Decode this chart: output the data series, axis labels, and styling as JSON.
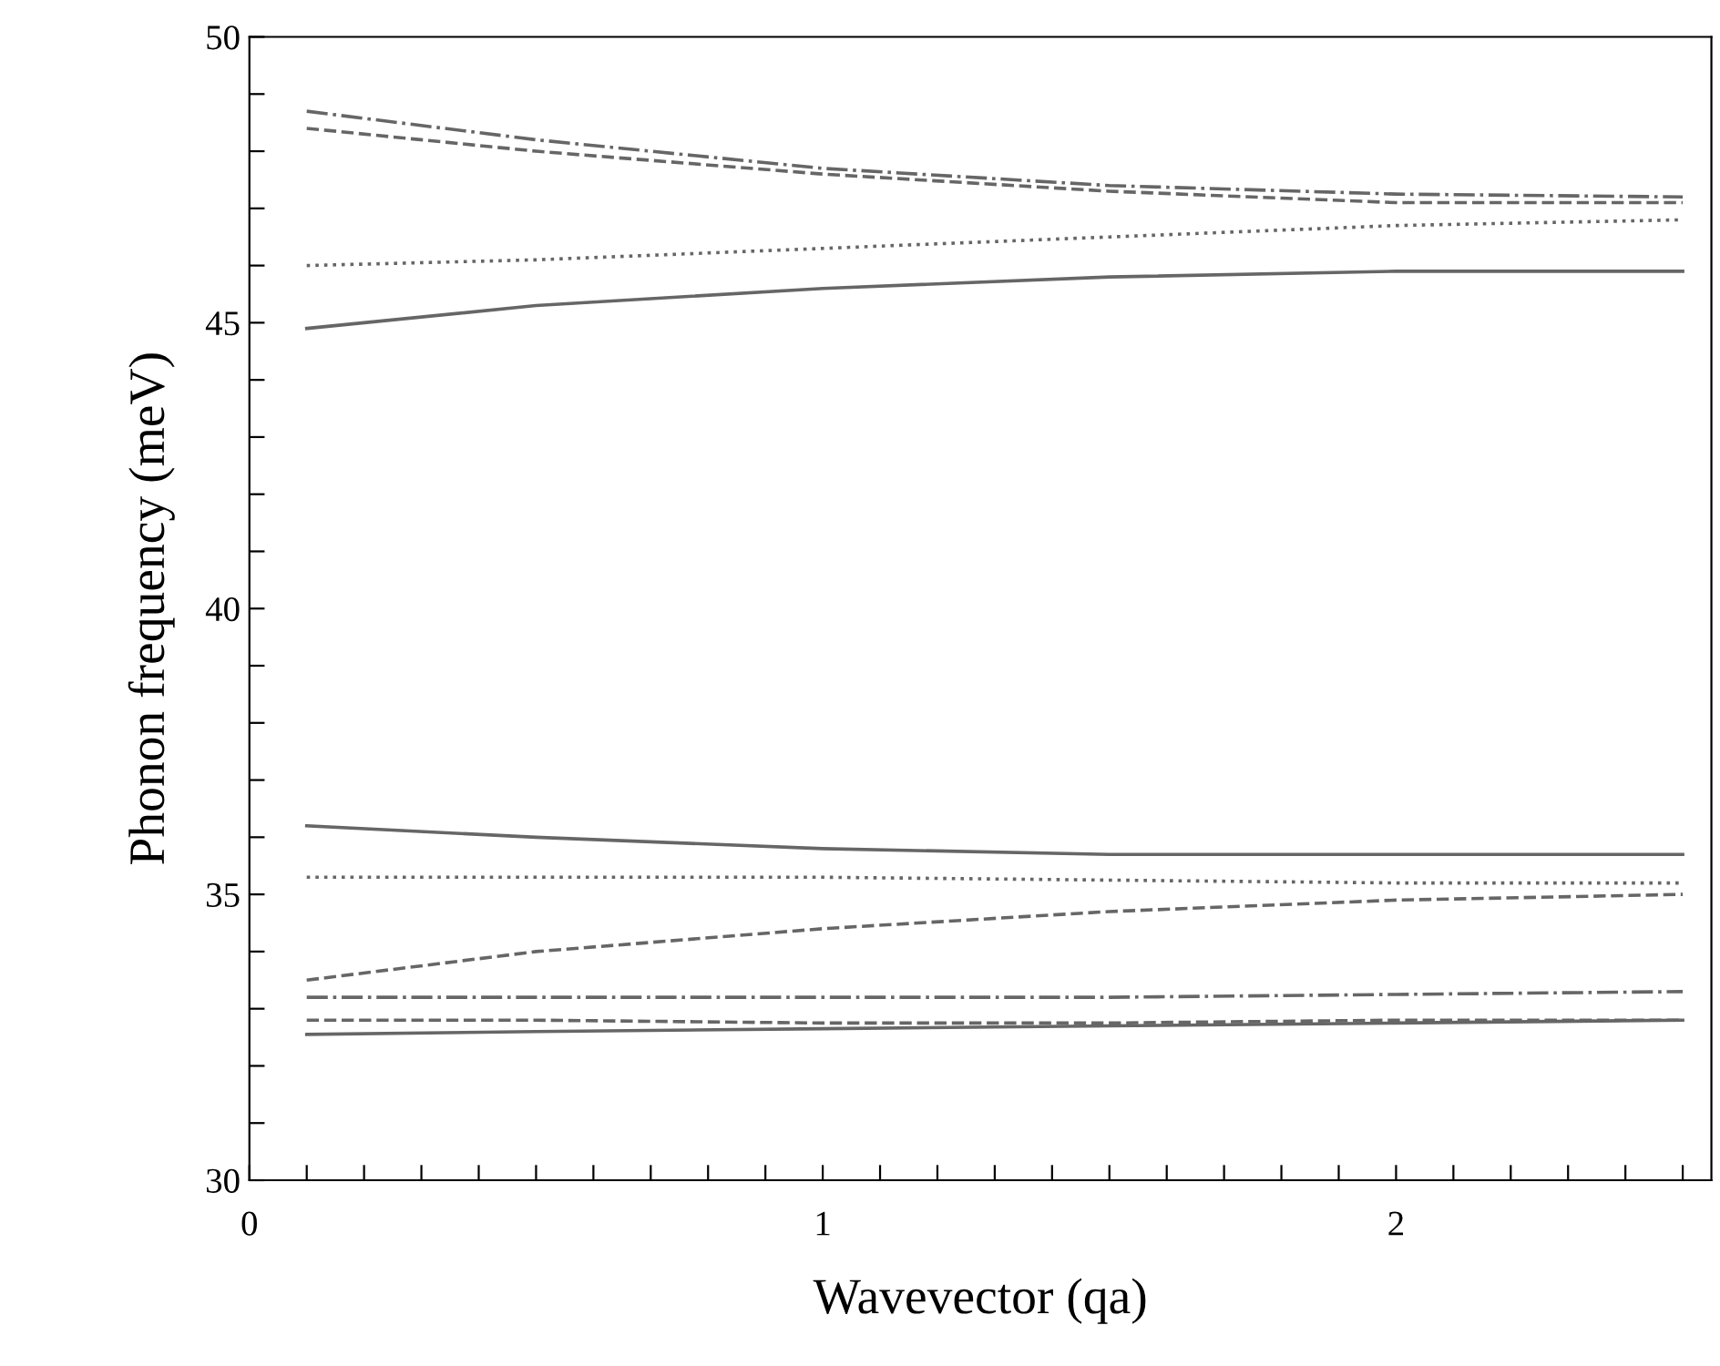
{
  "chart_data": {
    "type": "line",
    "xlabel": "Wavevector (qa)",
    "ylabel": "Phonon frequency (meV)",
    "xlim": [
      0,
      2.55
    ],
    "ylim": [
      30,
      50
    ],
    "xticks": [
      0,
      {
        "value": 0.1,
        "label": null
      },
      {
        "value": 0.2,
        "label": null
      },
      {
        "value": 0.3,
        "label": null
      },
      {
        "value": 0.4,
        "label": null
      },
      {
        "value": 0.5,
        "label": null
      },
      {
        "value": 0.6,
        "label": null
      },
      {
        "value": 0.7,
        "label": null
      },
      {
        "value": 0.8,
        "label": null
      },
      {
        "value": 0.9,
        "label": null
      },
      1,
      {
        "value": 1.1,
        "label": null
      },
      {
        "value": 1.2,
        "label": null
      },
      {
        "value": 1.3,
        "label": null
      },
      {
        "value": 1.4,
        "label": null
      },
      {
        "value": 1.5,
        "label": null
      },
      {
        "value": 1.6,
        "label": null
      },
      {
        "value": 1.7,
        "label": null
      },
      {
        "value": 1.8,
        "label": null
      },
      {
        "value": 1.9,
        "label": null
      },
      2,
      {
        "value": 2.1,
        "label": null
      },
      {
        "value": 2.2,
        "label": null
      },
      {
        "value": 2.3,
        "label": null
      },
      {
        "value": 2.4,
        "label": null
      },
      {
        "value": 2.5,
        "label": null
      }
    ],
    "yticks": [
      30,
      {
        "value": 31,
        "label": null
      },
      {
        "value": 32,
        "label": null
      },
      {
        "value": 33,
        "label": null
      },
      {
        "value": 34,
        "label": null
      },
      35,
      {
        "value": 36,
        "label": null
      },
      {
        "value": 37,
        "label": null
      },
      {
        "value": 38,
        "label": null
      },
      {
        "value": 39,
        "label": null
      },
      40,
      {
        "value": 41,
        "label": null
      },
      {
        "value": 42,
        "label": null
      },
      {
        "value": 43,
        "label": null
      },
      {
        "value": 44,
        "label": null
      },
      45,
      {
        "value": 46,
        "label": null
      },
      {
        "value": 47,
        "label": null
      },
      {
        "value": 48,
        "label": null
      },
      {
        "value": 49,
        "label": null
      },
      50
    ],
    "grid": false,
    "legend": false,
    "marker": "none",
    "x": [
      0.1,
      0.5,
      1,
      1.5,
      2,
      2.5
    ],
    "series": [
      {
        "color": "#666666",
        "line_style": "dashdot",
        "values": [
          48.7,
          48.2,
          47.7,
          47.4,
          47.25,
          47.2
        ]
      },
      {
        "color": "#666666",
        "line_style": "dashed",
        "values": [
          48.4,
          48.0,
          47.6,
          47.3,
          47.1,
          47.1
        ]
      },
      {
        "color": "#666666",
        "line_style": "dotted",
        "values": [
          46.0,
          46.1,
          46.3,
          46.5,
          46.7,
          46.8
        ]
      },
      {
        "color": "#666666",
        "line_style": "solid",
        "values": [
          44.9,
          45.3,
          45.6,
          45.8,
          45.9,
          45.9
        ]
      },
      {
        "color": "#666666",
        "line_style": "solid",
        "values": [
          36.2,
          36.0,
          35.8,
          35.7,
          35.7,
          35.7
        ]
      },
      {
        "color": "#666666",
        "line_style": "dotted",
        "values": [
          35.3,
          35.3,
          35.3,
          35.25,
          35.2,
          35.2
        ]
      },
      {
        "color": "#666666",
        "line_style": "dashed",
        "values": [
          33.5,
          34.0,
          34.4,
          34.7,
          34.9,
          35.0
        ]
      },
      {
        "color": "#666666",
        "line_style": "dashdot",
        "values": [
          33.2,
          33.2,
          33.2,
          33.2,
          33.25,
          33.3
        ]
      },
      {
        "color": "#666666",
        "line_style": "dashed",
        "values": [
          32.8,
          32.8,
          32.75,
          32.75,
          32.8,
          32.8
        ]
      },
      {
        "color": "#666666",
        "line_style": "solid",
        "values": [
          32.55,
          32.6,
          32.65,
          32.7,
          32.75,
          32.8
        ]
      }
    ]
  }
}
